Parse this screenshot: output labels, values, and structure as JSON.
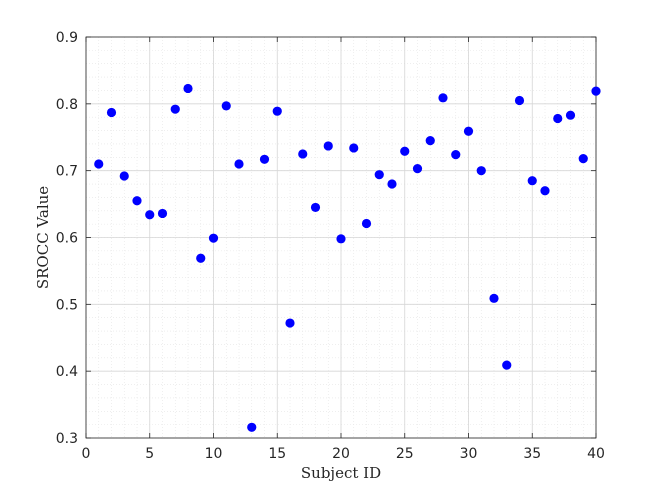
{
  "chart_data": {
    "type": "scatter",
    "title": "",
    "xlabel": "Subject ID",
    "ylabel": "SROCC Value",
    "xlim": [
      0,
      40
    ],
    "ylim": [
      0.3,
      0.9
    ],
    "xticks": [
      0,
      5,
      10,
      15,
      20,
      25,
      30,
      35,
      40
    ],
    "yticks": [
      0.3,
      0.4,
      0.5,
      0.6,
      0.7,
      0.8,
      0.9
    ],
    "x_tick_labels": [
      "0",
      "5",
      "10",
      "15",
      "20",
      "25",
      "30",
      "35",
      "40"
    ],
    "y_tick_labels": [
      "0.3",
      "0.4",
      "0.5",
      "0.6",
      "0.7",
      "0.8",
      "0.9"
    ],
    "grid": true,
    "minor_grid": true,
    "marker_color": "#0000ff",
    "series": [
      {
        "x": [
          1,
          2,
          3,
          4,
          5,
          6,
          7,
          8,
          9,
          10,
          11,
          12,
          13,
          14,
          15,
          16,
          17,
          18,
          19,
          20,
          21,
          22,
          23,
          24,
          25,
          26,
          27,
          28,
          29,
          30,
          31,
          32,
          33,
          34,
          35,
          36,
          37,
          38,
          39,
          40
        ],
        "y": [
          0.71,
          0.787,
          0.692,
          0.655,
          0.634,
          0.636,
          0.792,
          0.823,
          0.569,
          0.599,
          0.797,
          0.71,
          0.316,
          0.717,
          0.789,
          0.472,
          0.725,
          0.645,
          0.737,
          0.598,
          0.734,
          0.621,
          0.694,
          0.68,
          0.729,
          0.703,
          0.745,
          0.809,
          0.724,
          0.759,
          0.7,
          0.509,
          0.409,
          0.805,
          0.685,
          0.67,
          0.778,
          0.783,
          0.718,
          0.819
        ]
      }
    ]
  }
}
